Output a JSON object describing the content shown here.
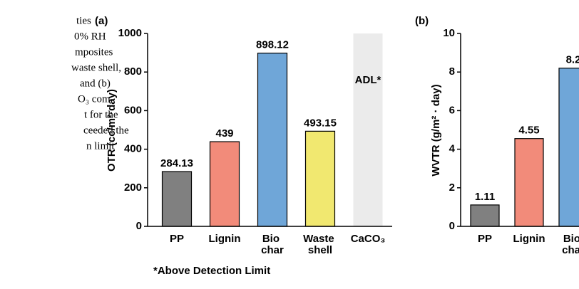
{
  "text": [
    "ties",
    "0% RH",
    "mposites",
    "waste shell,",
    "and (b)",
    "O₃ com-",
    "t for the",
    "ceeded the",
    "n limit"
  ],
  "chart_data": [
    {
      "type": "bar",
      "panel": "(a)",
      "y_label": "OTR (cc/m²·day)",
      "categories": [
        "PP",
        "Lignin",
        "Bio char",
        "Waste shell",
        "CaCO₃"
      ],
      "values": [
        284.13,
        439,
        898.12,
        493.15,
        null
      ],
      "colors": [
        "#808080",
        "#f28b7a",
        "#6fa6d8",
        "#f1e870",
        "#ebebeb"
      ],
      "ylim": [
        0,
        1000
      ],
      "yticks": [
        0,
        200,
        400,
        600,
        800,
        1000
      ],
      "annotation": "ADL*",
      "footnote": "*Above Detection Limit"
    },
    {
      "type": "bar",
      "panel": "(b)",
      "y_label": "WVTR (g/m² · day)",
      "categories": [
        "PP",
        "Lignin",
        "Bio char"
      ],
      "values": [
        1.11,
        4.55,
        8.2
      ],
      "colors": [
        "#808080",
        "#f28b7a",
        "#6fa6d8"
      ],
      "ylim": [
        0,
        10
      ],
      "yticks": [
        0,
        2,
        4,
        6,
        8,
        10
      ]
    }
  ]
}
